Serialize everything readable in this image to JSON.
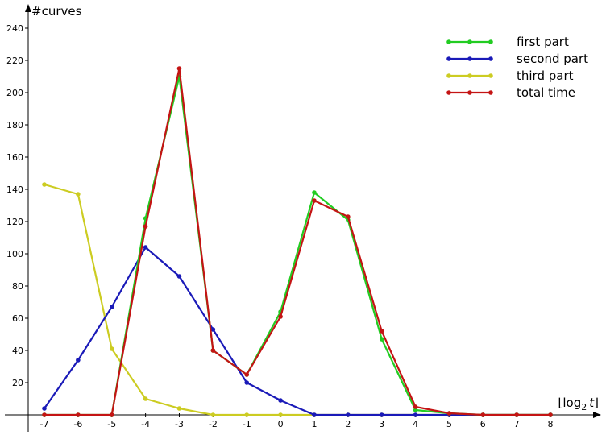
{
  "chart_data": {
    "type": "line",
    "ylabel": "#curves",
    "xlabel_parts": {
      "left": "⌊log",
      "sub": "2",
      "var": "t",
      "right": "⌋"
    },
    "x": [
      -7,
      -6,
      -5,
      -4,
      -3,
      -2,
      -1,
      0,
      1,
      2,
      3,
      4,
      5,
      6,
      7,
      8
    ],
    "x_tick_labels": [
      "-7",
      "-6",
      "-5",
      "-4",
      "-3",
      "-2",
      "-1",
      "0",
      "1",
      "2",
      "3",
      "4",
      "5",
      "6",
      "7",
      "8"
    ],
    "y_ticks": [
      20,
      40,
      60,
      80,
      100,
      120,
      140,
      160,
      180,
      200,
      220,
      240
    ],
    "y_tick_labels": [
      "20",
      "40",
      "60",
      "80",
      "100",
      "120",
      "140",
      "160",
      "180",
      "200",
      "220",
      "240"
    ],
    "ylim": [
      0,
      240
    ],
    "xlim": [
      -7,
      8
    ],
    "grid": false,
    "legend_position": "top-right",
    "series": [
      {
        "name": "first part",
        "color": "#22cc22",
        "values": [
          0,
          0,
          0,
          122,
          210,
          40,
          25,
          64,
          138,
          121,
          47,
          3,
          1,
          0,
          0,
          0
        ]
      },
      {
        "name": "second part",
        "color": "#1a1ab8",
        "values": [
          4,
          34,
          67,
          104,
          86,
          53,
          20,
          9,
          0,
          0,
          0,
          0,
          0,
          0,
          0,
          0
        ]
      },
      {
        "name": "third part",
        "color": "#cccc22",
        "values": [
          143,
          137,
          41,
          10,
          4,
          0,
          0,
          0,
          0,
          0,
          0,
          0,
          0,
          0,
          0,
          0
        ]
      },
      {
        "name": "total time",
        "color": "#c41414",
        "values": [
          0,
          0,
          0,
          117,
          215,
          40,
          25,
          61,
          133,
          123,
          52,
          5,
          1,
          0,
          0,
          0
        ]
      }
    ]
  }
}
